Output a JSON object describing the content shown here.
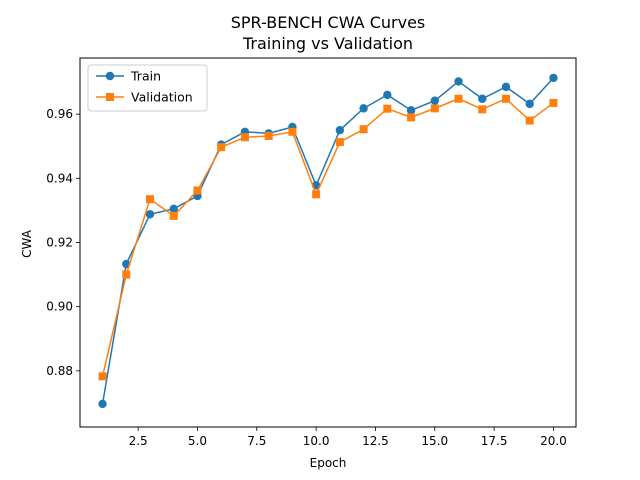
{
  "chart_data": {
    "type": "line",
    "title": "SPR-BENCH CWA Curves",
    "subtitle": "Training vs Validation",
    "xlabel": "Epoch",
    "ylabel": "CWA",
    "xlim": [
      0.05,
      20.95
    ],
    "ylim": [
      0.8625,
      0.9775
    ],
    "xticks": [
      2.5,
      5.0,
      7.5,
      10.0,
      12.5,
      15.0,
      17.5,
      20.0
    ],
    "xtick_labels": [
      "2.5",
      "5.0",
      "7.5",
      "10.0",
      "12.5",
      "15.0",
      "17.5",
      "20.0"
    ],
    "yticks": [
      0.88,
      0.9,
      0.92,
      0.94,
      0.96
    ],
    "ytick_labels": [
      "0.88",
      "0.90",
      "0.92",
      "0.94",
      "0.96"
    ],
    "grid": false,
    "legend_position": "top-left",
    "x": [
      1,
      2,
      3,
      4,
      5,
      6,
      7,
      8,
      9,
      10,
      11,
      12,
      13,
      14,
      15,
      16,
      17,
      18,
      19,
      20
    ],
    "series": [
      {
        "name": "Train",
        "color": "#1f77b4",
        "marker": "circle",
        "values": [
          0.8697,
          0.9133,
          0.9288,
          0.9305,
          0.9345,
          0.9505,
          0.9545,
          0.954,
          0.956,
          0.9378,
          0.955,
          0.9618,
          0.966,
          0.9612,
          0.9642,
          0.9702,
          0.9648,
          0.9685,
          0.9632,
          0.9713
        ]
      },
      {
        "name": "Validation",
        "color": "#ff7f0e",
        "marker": "square",
        "values": [
          0.8783,
          0.91,
          0.9335,
          0.9283,
          0.9362,
          0.9497,
          0.9528,
          0.9532,
          0.9545,
          0.935,
          0.9513,
          0.9553,
          0.9617,
          0.959,
          0.9618,
          0.9648,
          0.9615,
          0.9648,
          0.958,
          0.9635
        ]
      }
    ]
  }
}
